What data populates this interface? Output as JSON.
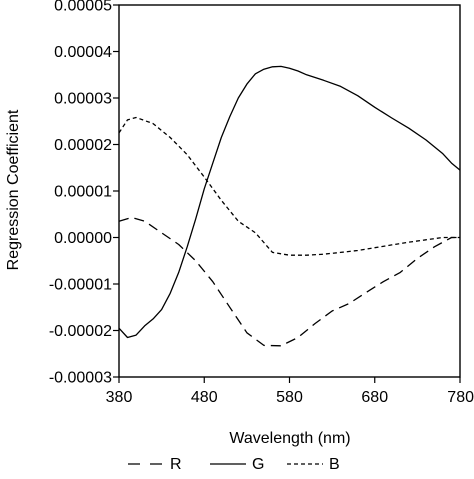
{
  "chart_data": {
    "type": "line",
    "title": "",
    "xlabel": "Wavelength (nm)",
    "ylabel": "Regression Coefficient",
    "xlim": [
      380,
      780
    ],
    "ylim": [
      -3e-05,
      5e-05
    ],
    "x_ticks": [
      380,
      480,
      580,
      680,
      780
    ],
    "x_tick_labels": [
      "380",
      "480",
      "580",
      "680",
      "780"
    ],
    "y_ticks": [
      -3e-05,
      -2e-05,
      -1e-05,
      0,
      1e-05,
      2e-05,
      3e-05,
      4e-05,
      5e-05
    ],
    "y_tick_labels": [
      "-0.00003",
      "-0.00002",
      "-0.00001",
      "0.00000",
      "0.00001",
      "0.00002",
      "0.00003",
      "0.00004",
      "0.00005"
    ],
    "grid": false,
    "legend_position": "bottom",
    "series": [
      {
        "name": "R",
        "dash": "dashed",
        "x": [
          380,
          395,
          410,
          430,
          450,
          470,
          490,
          510,
          530,
          550,
          570,
          590,
          610,
          630,
          650,
          670,
          690,
          710,
          730,
          750,
          770,
          780
        ],
        "y": [
          3.5e-06,
          4.3e-06,
          3.5e-06,
          1e-06,
          -1.5e-06,
          -5e-06,
          -9.5e-06,
          -1.5e-05,
          -2.05e-05,
          -2.32e-05,
          -2.33e-05,
          -2.15e-05,
          -1.85e-05,
          -1.58e-05,
          -1.42e-05,
          -1.18e-05,
          -9.5e-06,
          -7.5e-06,
          -4.5e-06,
          -2e-06,
          0,
          0
        ]
      },
      {
        "name": "G",
        "dash": "solid",
        "x": [
          380,
          390,
          400,
          410,
          420,
          430,
          440,
          450,
          460,
          470,
          480,
          490,
          500,
          510,
          520,
          530,
          540,
          550,
          560,
          570,
          580,
          590,
          600,
          620,
          640,
          660,
          680,
          700,
          720,
          740,
          760,
          770,
          780
        ],
        "y": [
          -1.95e-05,
          -2.15e-05,
          -2.1e-05,
          -1.9e-05,
          -1.75e-05,
          -1.55e-05,
          -1.2e-05,
          -7.5e-06,
          -2e-06,
          4e-06,
          1.05e-05,
          1.6e-05,
          2.15e-05,
          2.6e-05,
          3e-05,
          3.3e-05,
          3.52e-05,
          3.62e-05,
          3.67e-05,
          3.68e-05,
          3.64e-05,
          3.58e-05,
          3.5e-05,
          3.38e-05,
          3.25e-05,
          3.05e-05,
          2.8e-05,
          2.57e-05,
          2.35e-05,
          2.1e-05,
          1.8e-05,
          1.6e-05,
          1.45e-05
        ]
      },
      {
        "name": "B",
        "dash": "dotted",
        "x": [
          380,
          390,
          400,
          420,
          440,
          460,
          480,
          500,
          520,
          540,
          560,
          580,
          600,
          620,
          640,
          660,
          680,
          700,
          720,
          740,
          760,
          780
        ],
        "y": [
          2.25e-05,
          2.53e-05,
          2.58e-05,
          2.45e-05,
          2.15e-05,
          1.78e-05,
          1.3e-05,
          8e-06,
          3.5e-06,
          1e-06,
          -3.2e-06,
          -3.8e-06,
          -3.8e-06,
          -3.6e-06,
          -3.2e-06,
          -2.8e-06,
          -2.2e-06,
          -1.6e-06,
          -1e-06,
          -5e-07,
          0,
          0
        ]
      }
    ]
  }
}
